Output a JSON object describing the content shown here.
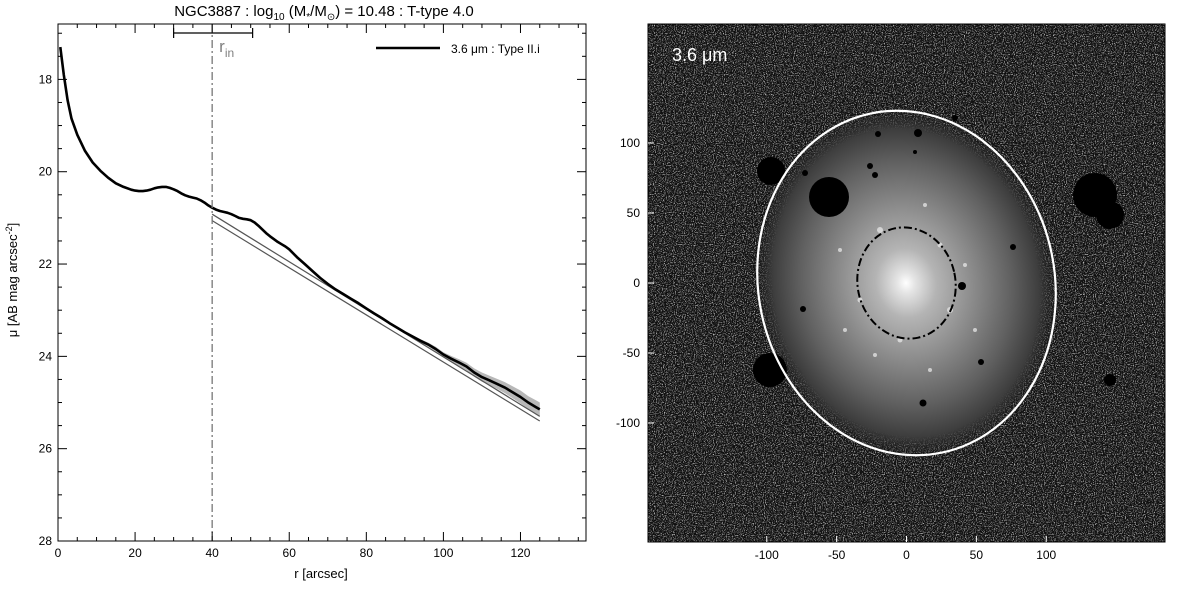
{
  "chart_data": [
    {
      "type": "line",
      "title_parts": {
        "galaxy": "NGC3887",
        "log": "log",
        "log_sub": "10",
        "mass": " (M",
        "mass_sub1": "*",
        "mass_mid": "/M",
        "mass_sub2": "⊙",
        "rest": ") = 10.48 : T-type 4.0"
      },
      "xlabel": "r [arcsec]",
      "ylabel_main": "μ [AB mag arcsec",
      "ylabel_sup": "-2",
      "ylabel_end": "]",
      "xlim": [
        0,
        137
      ],
      "ylim": [
        28,
        16.8
      ],
      "y_inverted": true,
      "x_ticks": [
        0,
        20,
        40,
        60,
        80,
        100,
        120
      ],
      "x_tick_labels": [
        "0",
        "20",
        "40",
        "60",
        "80",
        "100",
        "120"
      ],
      "y_ticks": [
        18,
        20,
        22,
        24,
        26,
        28
      ],
      "y_tick_labels": [
        "18",
        "20",
        "22",
        "24",
        "26",
        "28"
      ],
      "legend": {
        "placement": "top-right",
        "label": "3.6 μm : Type II.i"
      },
      "annotation": {
        "label_main": "r",
        "label_sub": "in",
        "x": 40,
        "range": [
          30,
          50.5
        ]
      },
      "profile": {
        "r": [
          0.6,
          1.5,
          2.5,
          3.5,
          5,
          7,
          9,
          11,
          13,
          15,
          17,
          19,
          20,
          21,
          22,
          23,
          24,
          25,
          26,
          27,
          28,
          29,
          30,
          31,
          32,
          33,
          34,
          35,
          36,
          37,
          38,
          39,
          40,
          41,
          42,
          43,
          44,
          45,
          46,
          47,
          48,
          49,
          50,
          51,
          52,
          53,
          54,
          55,
          56,
          57,
          58,
          59,
          60,
          62,
          64,
          66,
          68,
          70,
          72,
          74,
          76,
          78,
          80,
          82,
          84,
          86,
          88,
          90,
          92,
          94,
          96,
          98,
          100,
          102,
          104,
          106,
          108,
          110,
          112,
          114,
          116,
          118,
          120,
          122,
          124,
          125
        ],
        "mu": [
          17.3,
          17.9,
          18.45,
          18.85,
          19.2,
          19.55,
          19.8,
          19.98,
          20.13,
          20.25,
          20.33,
          20.39,
          20.41,
          20.42,
          20.42,
          20.41,
          20.39,
          20.36,
          20.34,
          20.33,
          20.33,
          20.35,
          20.38,
          20.42,
          20.47,
          20.51,
          20.54,
          20.56,
          20.58,
          20.62,
          20.67,
          20.73,
          20.78,
          20.82,
          20.85,
          20.87,
          20.89,
          20.92,
          20.96,
          21.0,
          21.02,
          21.03,
          21.05,
          21.1,
          21.17,
          21.25,
          21.33,
          21.4,
          21.46,
          21.52,
          21.57,
          21.62,
          21.68,
          21.85,
          22.0,
          22.15,
          22.3,
          22.43,
          22.55,
          22.65,
          22.75,
          22.85,
          22.96,
          23.07,
          23.17,
          23.28,
          23.38,
          23.48,
          23.57,
          23.66,
          23.74,
          23.84,
          23.96,
          24.05,
          24.13,
          24.22,
          24.35,
          24.45,
          24.52,
          24.6,
          24.68,
          24.78,
          24.88,
          25.0,
          25.1,
          25.15
        ],
        "band": [
          0,
          0,
          0,
          0,
          0,
          0,
          0,
          0,
          0,
          0,
          0,
          0,
          0,
          0,
          0,
          0,
          0,
          0,
          0,
          0,
          0,
          0,
          0,
          0,
          0,
          0,
          0,
          0,
          0,
          0,
          0,
          0,
          0,
          0,
          0,
          0,
          0,
          0,
          0,
          0,
          0,
          0,
          0,
          0,
          0,
          0,
          0,
          0,
          0,
          0,
          0,
          0,
          0,
          0,
          0,
          0,
          0,
          0,
          0,
          0,
          0,
          0,
          0,
          0,
          0,
          0,
          0,
          0,
          0.02,
          0.03,
          0.04,
          0.05,
          0.05,
          0.06,
          0.07,
          0.08,
          0.09,
          0.1,
          0.1,
          0.11,
          0.12,
          0.13,
          0.14,
          0.14,
          0.15,
          0.15
        ]
      },
      "fit_line": {
        "r": [
          40,
          125
        ],
        "mu": [
          20.92,
          25.3
        ]
      },
      "fit_line2": {
        "r": [
          40,
          125
        ],
        "mu": [
          21.06,
          25.4
        ]
      }
    },
    {
      "type": "image",
      "label": "3.6 μm",
      "x_ticks": [
        -100,
        -50,
        0,
        50,
        100
      ],
      "x_tick_labels": [
        "-100",
        "-50",
        "0",
        "50",
        "100"
      ],
      "y_ticks": [
        100,
        50,
        0,
        -50,
        -100
      ],
      "y_tick_labels": [
        "100",
        "50",
        "0",
        "-50",
        "-100"
      ],
      "xlim": [
        -185,
        185
      ],
      "ylim": [
        -185,
        185
      ],
      "outer_ellipse": {
        "cx": 0,
        "cy": 0,
        "rx": 106,
        "ry": 124,
        "rotation_deg": -12,
        "color": "#ffffff"
      },
      "inner_ellipse": {
        "cx": 0,
        "cy": 0,
        "rx": 35,
        "ry": 40,
        "rotation_deg": -12,
        "color": "#000000"
      }
    }
  ]
}
